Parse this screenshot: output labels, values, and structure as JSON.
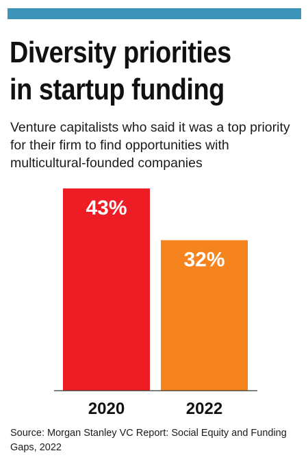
{
  "header": {
    "title_line1": "Diversity priorities",
    "title_line2": "in startup funding",
    "subtitle": "Venture capitalists who said it was a top priority for their firm to find opportunities with multicultural-founded companies"
  },
  "footer": {
    "source": "Source: Morgan Stanley VC Report: Social Equity and Funding Gaps, 2022"
  },
  "colors": {
    "accent_bar": "#3d93b8",
    "bar_2020": "#ee1c25",
    "bar_2022": "#f5841f"
  },
  "chart_data": {
    "type": "bar",
    "title": "Diversity priorities in startup funding",
    "categories": [
      "2020",
      "2022"
    ],
    "values": [
      43,
      32
    ],
    "value_labels": [
      "43%",
      "32%"
    ],
    "colors": [
      "#ee1c25",
      "#f5841f"
    ],
    "unit": "%",
    "ylim": [
      0,
      43
    ],
    "grid": false,
    "legend": "none"
  }
}
